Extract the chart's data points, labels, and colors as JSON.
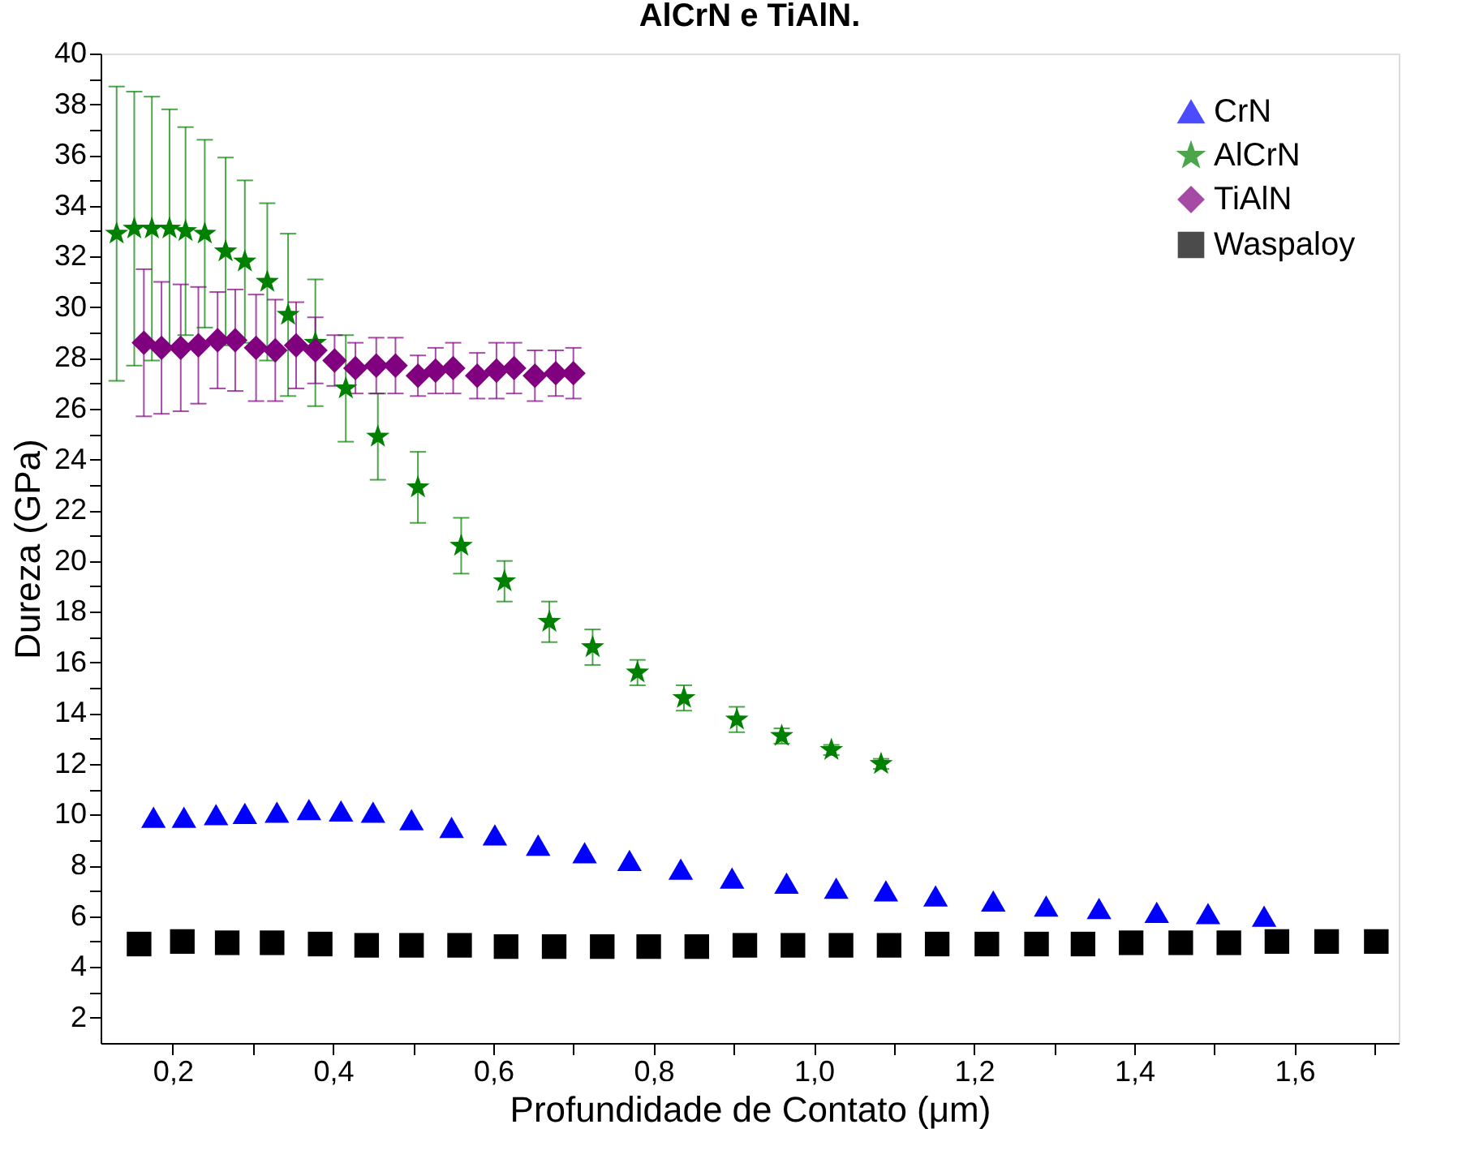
{
  "chart_data": {
    "type": "scatter",
    "title": "AlCrN e TiAlN.",
    "xlabel": "Profundidade de Contato (μm)",
    "ylabel": "Dureza (GPa)",
    "xlim": [
      0.11,
      1.73
    ],
    "ylim": [
      1,
      40
    ],
    "xticks": [
      {
        "value": 0.2,
        "label": "0,2"
      },
      {
        "value": 0.3,
        "label": null
      },
      {
        "value": 0.4,
        "label": "0,4"
      },
      {
        "value": 0.5,
        "label": null
      },
      {
        "value": 0.6,
        "label": "0,6"
      },
      {
        "value": 0.7,
        "label": null
      },
      {
        "value": 0.8,
        "label": "0,8"
      },
      {
        "value": 0.9,
        "label": null
      },
      {
        "value": 1.0,
        "label": "1,0"
      },
      {
        "value": 1.1,
        "label": null
      },
      {
        "value": 1.2,
        "label": "1,2"
      },
      {
        "value": 1.3,
        "label": null
      },
      {
        "value": 1.4,
        "label": "1,4"
      },
      {
        "value": 1.5,
        "label": null
      },
      {
        "value": 1.6,
        "label": "1,6"
      },
      {
        "value": 1.7,
        "label": null
      }
    ],
    "yticks": [
      2,
      {
        "value": 3,
        "label": null
      },
      4,
      {
        "value": 5,
        "label": null
      },
      6,
      {
        "value": 7,
        "label": null
      },
      8,
      {
        "value": 9,
        "label": null
      },
      10,
      {
        "value": 11,
        "label": null
      },
      12,
      {
        "value": 13,
        "label": null
      },
      14,
      {
        "value": 15,
        "label": null
      },
      16,
      {
        "value": 17,
        "label": null
      },
      18,
      {
        "value": 19,
        "label": null
      },
      20,
      {
        "value": 21,
        "label": null
      },
      22,
      {
        "value": 23,
        "label": null
      },
      24,
      {
        "value": 25,
        "label": null
      },
      26,
      {
        "value": 27,
        "label": null
      },
      28,
      {
        "value": 29,
        "label": null
      },
      30,
      {
        "value": 31,
        "label": null
      },
      32,
      {
        "value": 33,
        "label": null
      },
      34,
      {
        "value": 35,
        "label": null
      },
      36,
      {
        "value": 37,
        "label": null
      },
      38,
      {
        "value": 39,
        "label": null
      },
      40
    ],
    "grid": false,
    "legend": "top right",
    "series": [
      {
        "name": "CrN",
        "color": "#0000ff",
        "marker": "triangle",
        "x": [
          0.176,
          0.214,
          0.254,
          0.29,
          0.33,
          0.37,
          0.41,
          0.45,
          0.498,
          0.548,
          0.602,
          0.656,
          0.714,
          0.77,
          0.834,
          0.898,
          0.966,
          1.028,
          1.09,
          1.152,
          1.224,
          1.29,
          1.356,
          1.428,
          1.492,
          1.562
        ],
        "values": [
          9.9,
          9.9,
          10.0,
          10.05,
          10.1,
          10.2,
          10.15,
          10.1,
          9.8,
          9.5,
          9.2,
          8.8,
          8.5,
          8.2,
          7.85,
          7.5,
          7.3,
          7.1,
          7.0,
          6.8,
          6.6,
          6.4,
          6.3,
          6.15,
          6.1,
          6.0
        ]
      },
      {
        "name": "AlCrN",
        "color": "#008000",
        "marker": "star",
        "x": [
          0.13,
          0.152,
          0.174,
          0.196,
          0.216,
          0.24,
          0.266,
          0.29,
          0.318,
          0.344,
          0.378,
          0.416,
          0.456,
          0.506,
          0.56,
          0.614,
          0.67,
          0.724,
          0.78,
          0.838,
          0.904,
          0.96,
          1.022,
          1.084
        ],
        "values": [
          32.9,
          33.1,
          33.1,
          33.1,
          33.0,
          32.9,
          32.2,
          31.8,
          31.0,
          29.7,
          28.6,
          26.8,
          24.9,
          22.9,
          20.6,
          19.2,
          17.6,
          16.6,
          15.6,
          14.6,
          13.75,
          13.1,
          12.55,
          12.0
        ],
        "errors": [
          5.8,
          5.4,
          5.2,
          4.7,
          4.1,
          3.7,
          3.7,
          3.2,
          3.1,
          3.2,
          2.5,
          2.1,
          1.7,
          1.4,
          1.1,
          0.8,
          0.8,
          0.7,
          0.5,
          0.5,
          0.5,
          0.3,
          0.2,
          0.2
        ]
      },
      {
        "name": "TiAlN",
        "color": "#800080",
        "marker": "diamond",
        "x": [
          0.164,
          0.186,
          0.21,
          0.232,
          0.256,
          0.278,
          0.304,
          0.328,
          0.354,
          0.378,
          0.402,
          0.428,
          0.454,
          0.478,
          0.506,
          0.528,
          0.55,
          0.58,
          0.604,
          0.626,
          0.652,
          0.678,
          0.7
        ],
        "values": [
          28.6,
          28.4,
          28.4,
          28.5,
          28.7,
          28.7,
          28.4,
          28.3,
          28.5,
          28.3,
          27.9,
          27.6,
          27.7,
          27.7,
          27.3,
          27.5,
          27.6,
          27.3,
          27.5,
          27.6,
          27.3,
          27.4,
          27.4
        ],
        "errors": [
          2.9,
          2.6,
          2.5,
          2.3,
          1.9,
          2.0,
          2.1,
          2.0,
          1.7,
          1.3,
          1.0,
          1.0,
          1.1,
          1.1,
          0.8,
          0.9,
          1.0,
          0.9,
          1.1,
          1.0,
          1.0,
          0.9,
          1.0
        ]
      },
      {
        "name": "Waspaloy",
        "color": "#000000",
        "marker": "square",
        "x": [
          0.158,
          0.212,
          0.268,
          0.324,
          0.384,
          0.442,
          0.498,
          0.558,
          0.616,
          0.676,
          0.736,
          0.794,
          0.854,
          0.914,
          0.974,
          1.034,
          1.094,
          1.154,
          1.216,
          1.278,
          1.336,
          1.396,
          1.458,
          1.518,
          1.578,
          1.64,
          1.702
        ],
        "values": [
          4.9,
          5.0,
          4.95,
          4.95,
          4.9,
          4.85,
          4.85,
          4.85,
          4.8,
          4.8,
          4.8,
          4.8,
          4.8,
          4.85,
          4.85,
          4.85,
          4.85,
          4.9,
          4.9,
          4.9,
          4.9,
          4.95,
          4.95,
          4.95,
          5.0,
          5.0,
          5.0
        ]
      }
    ]
  }
}
